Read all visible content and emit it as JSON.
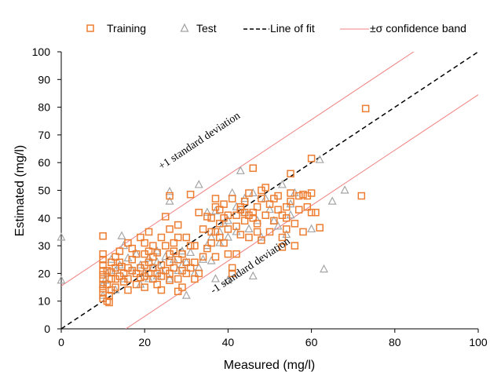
{
  "chart_data": {
    "type": "scatter",
    "title": "",
    "xlabel": "Measured (mg/l)",
    "ylabel": "Estimated (mg/l)",
    "xlim": [
      0,
      100
    ],
    "ylim": [
      0,
      100
    ],
    "xticks": [
      "0",
      "20",
      "40",
      "60",
      "80",
      "100"
    ],
    "yticks": [
      "0",
      "10",
      "20",
      "30",
      "40",
      "50",
      "60",
      "70",
      "80",
      "90",
      "100"
    ],
    "grid": false,
    "legend_position": "top",
    "legend": {
      "training": "Training",
      "test": "Test",
      "fit": "Line of fit",
      "band": "±σ confidence band"
    },
    "colors": {
      "training": "#ED7D31",
      "test": "#A5A5A5",
      "fit": "#000000",
      "band": "#F08080"
    },
    "lines": {
      "fit": {
        "slope": 1,
        "intercept": 0
      },
      "sigma": 15.5
    },
    "annotations": {
      "upper": "+1 standard deviation",
      "lower": "-1 standard deviation"
    },
    "series": [
      {
        "name": "Training",
        "marker": "square",
        "points": [
          [
            10,
            33.5
          ],
          [
            10,
            27
          ],
          [
            10,
            25
          ],
          [
            10,
            23
          ],
          [
            10,
            21
          ],
          [
            10,
            19.5
          ],
          [
            10,
            18
          ],
          [
            10,
            16
          ],
          [
            10,
            14.5
          ],
          [
            10,
            13
          ],
          [
            10,
            11
          ],
          [
            11,
            10
          ],
          [
            11,
            21
          ],
          [
            11,
            16
          ],
          [
            11.5,
            12
          ],
          [
            11.5,
            9.5
          ],
          [
            12,
            24
          ],
          [
            12,
            20.5
          ],
          [
            12,
            18
          ],
          [
            12,
            14
          ],
          [
            13,
            26
          ],
          [
            13,
            22
          ],
          [
            13,
            18
          ],
          [
            13,
            15
          ],
          [
            14,
            19
          ],
          [
            14,
            24
          ],
          [
            14,
            28
          ],
          [
            14.5,
            22.5
          ],
          [
            15,
            20
          ],
          [
            15,
            17
          ],
          [
            16,
            31
          ],
          [
            16,
            22
          ],
          [
            16,
            18
          ],
          [
            16,
            14
          ],
          [
            17,
            25
          ],
          [
            17,
            29
          ],
          [
            17,
            21
          ],
          [
            18,
            20
          ],
          [
            18,
            16
          ],
          [
            18,
            27
          ],
          [
            19,
            22
          ],
          [
            19,
            33
          ],
          [
            19,
            18.5
          ],
          [
            20,
            31
          ],
          [
            20,
            27
          ],
          [
            20,
            23
          ],
          [
            20,
            19
          ],
          [
            20,
            15
          ],
          [
            21,
            35
          ],
          [
            21,
            28
          ],
          [
            21,
            24
          ],
          [
            21,
            20
          ],
          [
            22,
            30
          ],
          [
            22,
            22
          ],
          [
            22,
            18
          ],
          [
            22,
            26
          ],
          [
            23,
            27.5
          ],
          [
            23,
            20
          ],
          [
            23,
            16
          ],
          [
            24,
            33
          ],
          [
            24,
            23
          ],
          [
            24,
            19
          ],
          [
            24,
            14
          ],
          [
            25,
            40.5
          ],
          [
            25,
            30
          ],
          [
            25,
            21
          ],
          [
            26,
            48
          ],
          [
            26,
            36
          ],
          [
            26,
            27
          ],
          [
            26,
            24
          ],
          [
            26,
            20
          ],
          [
            26,
            17.5
          ],
          [
            27,
            31
          ],
          [
            27,
            28
          ],
          [
            27,
            22
          ],
          [
            28,
            33
          ],
          [
            28,
            37.5
          ],
          [
            28,
            25
          ],
          [
            28,
            18
          ],
          [
            28,
            13.5
          ],
          [
            29,
            15
          ],
          [
            29,
            27
          ],
          [
            29,
            21
          ],
          [
            30,
            24
          ],
          [
            30,
            20
          ],
          [
            30,
            33
          ],
          [
            31,
            48.5
          ],
          [
            31,
            22
          ],
          [
            31,
            30
          ],
          [
            32,
            30
          ],
          [
            32,
            24
          ],
          [
            32,
            18
          ],
          [
            33,
            20
          ],
          [
            33,
            42
          ],
          [
            34,
            36
          ],
          [
            34,
            26
          ],
          [
            35,
            40.5
          ],
          [
            35,
            29
          ],
          [
            36,
            35
          ],
          [
            36,
            31
          ],
          [
            36,
            40
          ],
          [
            37,
            47
          ],
          [
            37,
            44
          ],
          [
            37,
            35
          ],
          [
            37,
            26
          ],
          [
            38,
            43
          ],
          [
            38,
            38
          ],
          [
            38,
            33
          ],
          [
            39,
            45
          ],
          [
            39,
            40
          ],
          [
            39,
            31
          ],
          [
            40,
            41
          ],
          [
            40,
            36
          ],
          [
            40,
            27
          ],
          [
            41,
            47
          ],
          [
            41,
            22
          ],
          [
            41,
            20
          ],
          [
            42,
            37
          ],
          [
            42,
            41
          ],
          [
            42,
            27
          ],
          [
            43,
            44
          ],
          [
            43,
            34
          ],
          [
            43,
            43
          ],
          [
            44,
            42
          ],
          [
            44,
            39
          ],
          [
            44,
            46
          ],
          [
            45,
            49
          ],
          [
            45,
            41
          ],
          [
            45,
            33
          ],
          [
            46,
            42
          ],
          [
            46,
            40
          ],
          [
            46,
            58
          ],
          [
            47,
            44
          ],
          [
            47,
            38
          ],
          [
            47,
            35
          ],
          [
            48,
            50
          ],
          [
            48,
            47
          ],
          [
            48,
            32
          ],
          [
            49,
            51
          ],
          [
            49,
            41
          ],
          [
            50,
            45
          ],
          [
            50,
            35
          ],
          [
            51,
            47
          ],
          [
            51,
            39
          ],
          [
            52,
            48
          ],
          [
            52,
            43
          ],
          [
            53,
            41
          ],
          [
            53,
            33
          ],
          [
            53,
            29.5
          ],
          [
            54,
            44
          ],
          [
            54,
            40
          ],
          [
            54,
            36
          ],
          [
            55,
            56
          ],
          [
            55,
            49
          ],
          [
            55,
            46
          ],
          [
            56,
            38
          ],
          [
            56,
            30
          ],
          [
            57,
            48
          ],
          [
            57,
            43
          ],
          [
            58,
            48.5
          ],
          [
            58,
            35
          ],
          [
            59,
            48
          ],
          [
            59,
            44
          ],
          [
            60,
            61.5
          ],
          [
            60,
            49
          ],
          [
            60,
            42
          ],
          [
            61,
            42
          ],
          [
            62,
            36.5
          ],
          [
            72,
            48
          ],
          [
            73,
            79.5
          ]
        ]
      },
      {
        "name": "Test",
        "marker": "triangle",
        "points": [
          [
            0,
            33
          ],
          [
            0,
            17.5
          ],
          [
            10,
            16
          ],
          [
            10,
            12
          ],
          [
            10.5,
            17.5
          ],
          [
            11,
            20
          ],
          [
            12,
            25
          ],
          [
            13,
            21
          ],
          [
            13,
            14
          ],
          [
            14,
            23
          ],
          [
            14.5,
            33.5
          ],
          [
            15,
            30
          ],
          [
            15,
            18
          ],
          [
            16,
            25.5
          ],
          [
            17,
            21
          ],
          [
            18,
            27
          ],
          [
            19,
            23
          ],
          [
            19,
            16
          ],
          [
            20,
            20
          ],
          [
            21,
            25.5
          ],
          [
            21,
            18
          ],
          [
            22,
            22
          ],
          [
            23,
            28
          ],
          [
            23,
            24
          ],
          [
            23,
            19
          ],
          [
            24,
            21
          ],
          [
            25,
            26
          ],
          [
            26,
            49.5
          ],
          [
            26,
            46
          ],
          [
            26,
            18
          ],
          [
            27,
            25
          ],
          [
            28,
            21
          ],
          [
            29,
            28
          ],
          [
            29,
            23
          ],
          [
            30,
            12
          ],
          [
            30,
            24
          ],
          [
            31,
            27.5
          ],
          [
            32,
            20
          ],
          [
            33,
            22
          ],
          [
            33,
            52
          ],
          [
            34,
            25
          ],
          [
            35,
            30
          ],
          [
            35,
            42
          ],
          [
            36,
            33
          ],
          [
            36,
            24.5
          ],
          [
            37,
            18
          ],
          [
            37,
            42.5
          ],
          [
            38,
            35
          ],
          [
            38,
            31
          ],
          [
            39,
            38
          ],
          [
            40,
            17.5
          ],
          [
            40,
            33
          ],
          [
            40,
            39
          ],
          [
            41,
            49
          ],
          [
            42,
            44
          ],
          [
            42,
            35
          ],
          [
            43,
            57
          ],
          [
            44,
            47
          ],
          [
            44,
            42
          ],
          [
            45,
            36
          ],
          [
            46,
            19
          ],
          [
            46,
            49
          ],
          [
            47,
            39
          ],
          [
            48,
            33
          ],
          [
            49,
            47
          ],
          [
            50,
            43
          ],
          [
            51,
            39
          ],
          [
            52,
            37
          ],
          [
            53,
            52
          ],
          [
            54,
            34
          ],
          [
            55,
            45
          ],
          [
            55,
            41
          ],
          [
            56,
            49
          ],
          [
            60,
            36
          ],
          [
            62,
            61
          ],
          [
            63,
            21.5
          ],
          [
            65,
            46
          ],
          [
            68,
            50
          ]
        ]
      }
    ]
  }
}
